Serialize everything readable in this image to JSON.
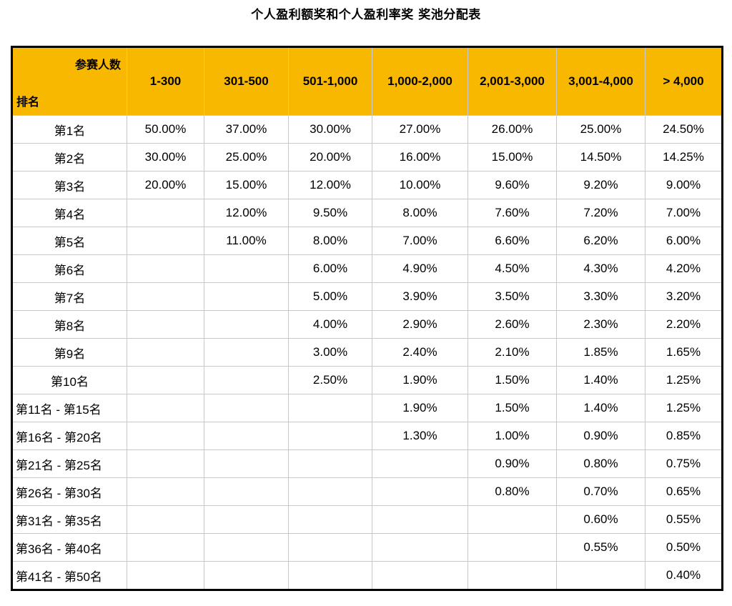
{
  "title": "个人盈利额奖和个人盈利率奖 奖池分配表",
  "header": {
    "corner_top": "参赛人数",
    "corner_bottom": "排名",
    "columns": [
      "1-300",
      "301-500",
      "501-1,000",
      "1,000-2,000",
      "2,001-3,000",
      "3,001-4,000",
      "> 4,000"
    ]
  },
  "colors": {
    "header_bg": "#f9b800",
    "border": "#c8c8c8",
    "outer_border": "#000000"
  },
  "rows": [
    {
      "rank": "第1名",
      "values": [
        "50.00%",
        "37.00%",
        "30.00%",
        "27.00%",
        "26.00%",
        "25.00%",
        "24.50%"
      ]
    },
    {
      "rank": "第2名",
      "values": [
        "30.00%",
        "25.00%",
        "20.00%",
        "16.00%",
        "15.00%",
        "14.50%",
        "14.25%"
      ]
    },
    {
      "rank": "第3名",
      "values": [
        "20.00%",
        "15.00%",
        "12.00%",
        "10.00%",
        "9.60%",
        "9.20%",
        "9.00%"
      ]
    },
    {
      "rank": "第4名",
      "values": [
        "",
        "12.00%",
        "9.50%",
        "8.00%",
        "7.60%",
        "7.20%",
        "7.00%"
      ]
    },
    {
      "rank": "第5名",
      "values": [
        "",
        "11.00%",
        "8.00%",
        "7.00%",
        "6.60%",
        "6.20%",
        "6.00%"
      ]
    },
    {
      "rank": "第6名",
      "values": [
        "",
        "",
        "6.00%",
        "4.90%",
        "4.50%",
        "4.30%",
        "4.20%"
      ]
    },
    {
      "rank": "第7名",
      "values": [
        "",
        "",
        "5.00%",
        "3.90%",
        "3.50%",
        "3.30%",
        "3.20%"
      ]
    },
    {
      "rank": "第8名",
      "values": [
        "",
        "",
        "4.00%",
        "2.90%",
        "2.60%",
        "2.30%",
        "2.20%"
      ]
    },
    {
      "rank": "第9名",
      "values": [
        "",
        "",
        "3.00%",
        "2.40%",
        "2.10%",
        "1.85%",
        "1.65%"
      ]
    },
    {
      "rank": "第10名",
      "values": [
        "",
        "",
        "2.50%",
        "1.90%",
        "1.50%",
        "1.40%",
        "1.25%"
      ]
    },
    {
      "rank": "第11名 - 第15名",
      "values": [
        "",
        "",
        "",
        "1.90%",
        "1.50%",
        "1.40%",
        "1.25%"
      ]
    },
    {
      "rank": "第16名 - 第20名",
      "values": [
        "",
        "",
        "",
        "1.30%",
        "1.00%",
        "0.90%",
        "0.85%"
      ]
    },
    {
      "rank": "第21名 - 第25名",
      "values": [
        "",
        "",
        "",
        "",
        "0.90%",
        "0.80%",
        "0.75%"
      ]
    },
    {
      "rank": "第26名 - 第30名",
      "values": [
        "",
        "",
        "",
        "",
        "0.80%",
        "0.70%",
        "0.65%"
      ]
    },
    {
      "rank": "第31名 - 第35名",
      "values": [
        "",
        "",
        "",
        "",
        "",
        "0.60%",
        "0.55%"
      ]
    },
    {
      "rank": "第36名 - 第40名",
      "values": [
        "",
        "",
        "",
        "",
        "",
        "0.55%",
        "0.50%"
      ]
    },
    {
      "rank": "第41名 - 第50名",
      "values": [
        "",
        "",
        "",
        "",
        "",
        "",
        "0.40%"
      ]
    }
  ]
}
